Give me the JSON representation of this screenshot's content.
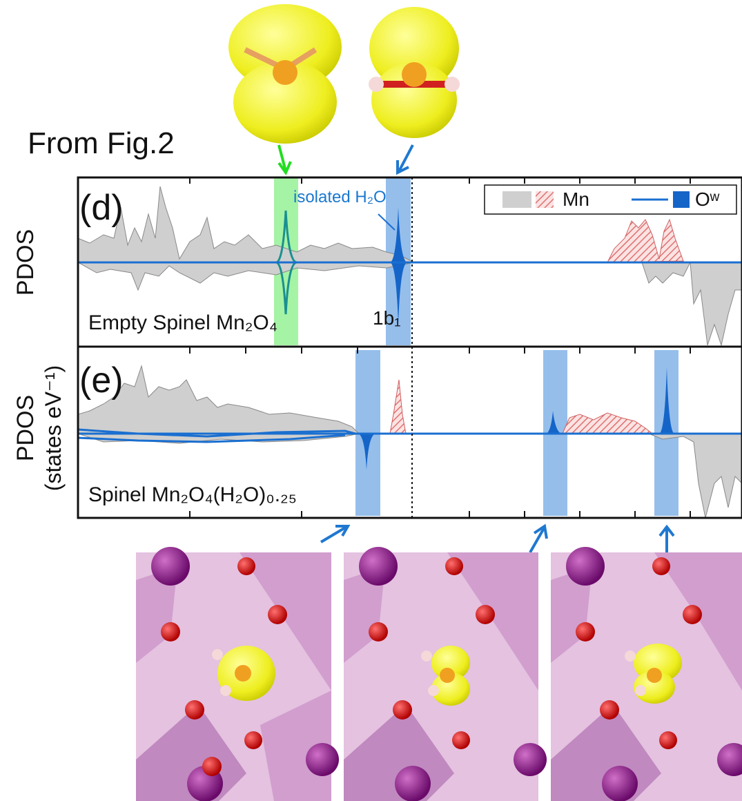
{
  "figure": {
    "note": "From Fig.2",
    "panel_d": {
      "label": "(d)",
      "y_label": "PDOS",
      "annotation": "isolated H₂O",
      "peak_label": "1b₁",
      "system": "Empty Spinel Mn₂O₄"
    },
    "panel_e": {
      "label": "(e)",
      "y_label": "PDOS",
      "y_unit": "(states eV⁻¹)",
      "system": "Spinel Mn₂O₄(H₂O)₀.₂₅"
    },
    "legend": [
      "Mn",
      "Oʷ"
    ]
  }
}
